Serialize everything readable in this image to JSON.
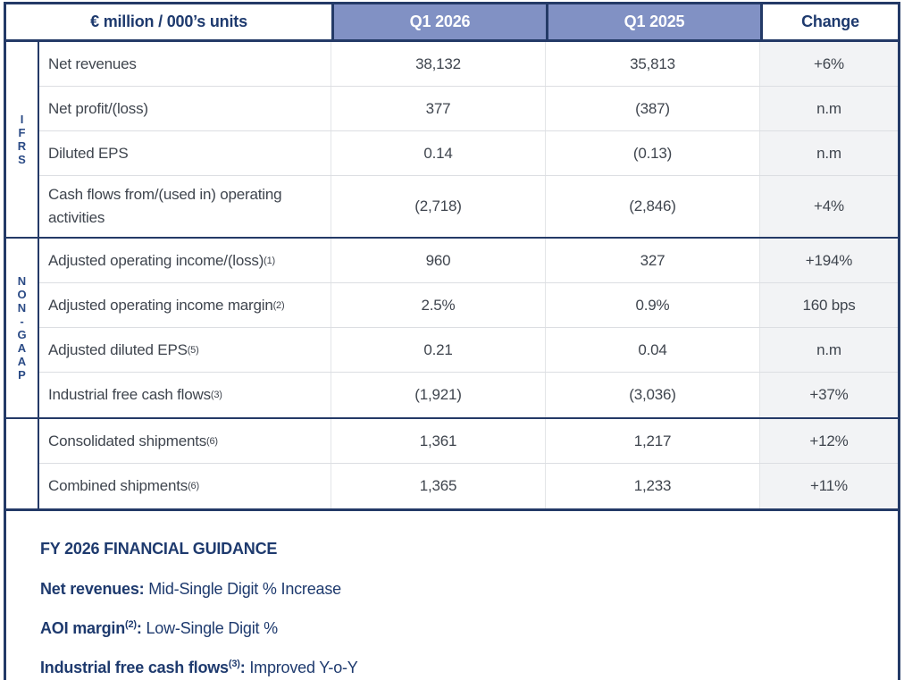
{
  "table": {
    "unit_header": "€ million / 000’s units",
    "columns": [
      "Q1 2026",
      "Q1 2025",
      "Change"
    ],
    "sections": [
      {
        "label": "IFRS",
        "rows": [
          {
            "metric": "Net revenues",
            "sup": "",
            "q1_2026": "38,132",
            "q1_2025": "35,813",
            "change": "+6%"
          },
          {
            "metric": "Net profit/(loss)",
            "sup": "",
            "q1_2026": "377",
            "q1_2025": "(387)",
            "change": "n.m"
          },
          {
            "metric": "Diluted EPS",
            "sup": "",
            "q1_2026": "0.14",
            "q1_2025": "(0.13)",
            "change": "n.m"
          },
          {
            "metric": "Cash flows from/(used in) operating activities",
            "sup": "",
            "q1_2026": "(2,718)",
            "q1_2025": "(2,846)",
            "change": "+4%"
          }
        ]
      },
      {
        "label": "NON-GAAP",
        "rows": [
          {
            "metric": "Adjusted operating income/(loss)",
            "sup": "(1)",
            "q1_2026": "960",
            "q1_2025": "327",
            "change": "+194%"
          },
          {
            "metric": "Adjusted operating income margin",
            "sup": "(2)",
            "q1_2026": "2.5%",
            "q1_2025": "0.9%",
            "change": "160 bps"
          },
          {
            "metric": "Adjusted diluted EPS",
            "sup": "(5)",
            "q1_2026": "0.21",
            "q1_2025": "0.04",
            "change": "n.m"
          },
          {
            "metric": "Industrial free cash flows",
            "sup": "(3)",
            "q1_2026": "(1,921)",
            "q1_2025": "(3,036)",
            "change": "+37%"
          }
        ]
      },
      {
        "label": "",
        "rows": [
          {
            "metric": "Consolidated shipments",
            "sup": "(6)",
            "q1_2026": "1,361",
            "q1_2025": "1,217",
            "change": "+12%"
          },
          {
            "metric": "Combined shipments",
            "sup": "(6)",
            "q1_2026": "1,365",
            "q1_2025": "1,233",
            "change": "+11%"
          }
        ]
      }
    ]
  },
  "guidance": {
    "title": "FY 2026 FINANCIAL GUIDANCE",
    "colon": ":",
    "items": [
      {
        "label": "Net revenues",
        "sup": "",
        "value": "Mid-Single Digit % Increase"
      },
      {
        "label": "AOI margin",
        "sup": "(2)",
        "value": "Low-Single Digit %"
      },
      {
        "label": "Industrial free cash flows",
        "sup": "(3)",
        "value": "Improved Y-o-Y"
      }
    ]
  },
  "colors": {
    "navy": "#243a67",
    "navy_text": "#1e3a6e",
    "header_blue": "#8191c4",
    "body_text": "#3f454e",
    "change_col_bg": "#f2f3f5",
    "row_divider": "#dcdee2"
  }
}
